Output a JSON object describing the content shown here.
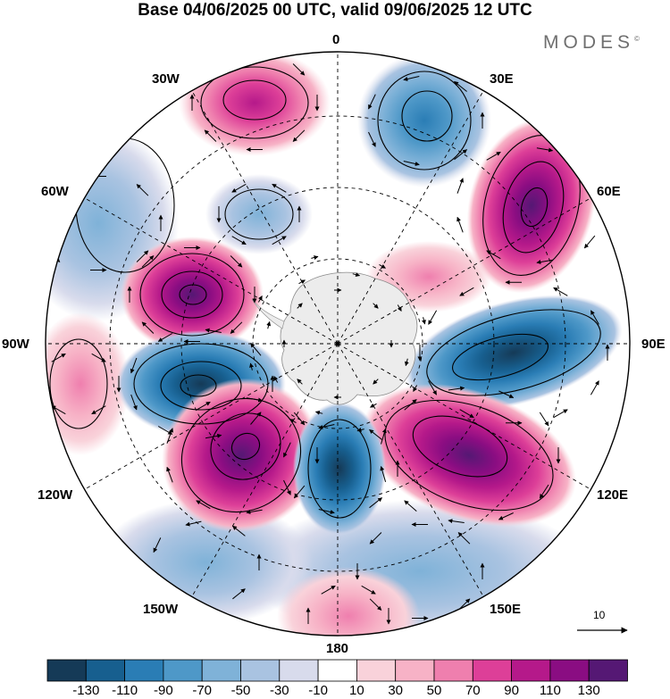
{
  "title": "Base 04/06/2025 00 UTC, valid 09/06/2025 12 UTC",
  "brand": "MODES",
  "brand_mark": "©",
  "longitude_labels": {
    "lon_0": "0",
    "lon_30e": "30E",
    "lon_60e": "60E",
    "lon_90e": "90E",
    "lon_120e": "120E",
    "lon_150e": "150E",
    "lon_180": "180",
    "lon_150w": "150W",
    "lon_120w": "120W",
    "lon_90w": "90W",
    "lon_60w": "60W",
    "lon_30w": "30W"
  },
  "reference_vector": {
    "label": "10"
  },
  "colorbar": {
    "labels": [
      "-130",
      "-110",
      "-90",
      "-70",
      "-50",
      "-30",
      "-10",
      "10",
      "30",
      "50",
      "70",
      "90",
      "110",
      "130"
    ],
    "colors": [
      "#153a57",
      "#175f8f",
      "#2a7db5",
      "#4e98c8",
      "#7fb2d8",
      "#a9c3e1",
      "#d8dbec",
      "#ffffff",
      "#f9d2da",
      "#f7b2c6",
      "#ef7fae",
      "#dd3f98",
      "#b5198a",
      "#8a0d82",
      "#551874"
    ]
  },
  "map_features": {
    "anomaly_centers": [
      {
        "sign": "positive",
        "lon": "30W",
        "intensity": 70
      },
      {
        "sign": "negative",
        "lon": "20E",
        "intensity": -70
      },
      {
        "sign": "positive",
        "lon": "60E",
        "intensity": 110
      },
      {
        "sign": "negative",
        "lon": "30W",
        "intensity": -50
      },
      {
        "sign": "positive",
        "lon": "60W",
        "intensity": 110
      },
      {
        "sign": "negative",
        "lon": "90E",
        "intensity": -90
      },
      {
        "sign": "negative",
        "lon": "100W",
        "intensity": -130
      },
      {
        "sign": "positive",
        "lon": "120E",
        "intensity": 110
      },
      {
        "sign": "positive",
        "lon": "135W",
        "intensity": 130
      },
      {
        "sign": "negative",
        "lon": "170E",
        "intensity": -90
      },
      {
        "sign": "positive",
        "lon": "90W",
        "intensity": 30
      }
    ],
    "land_mask": "Antarctica",
    "grid": "dashed meridians every 30 degrees and latitude circles"
  }
}
